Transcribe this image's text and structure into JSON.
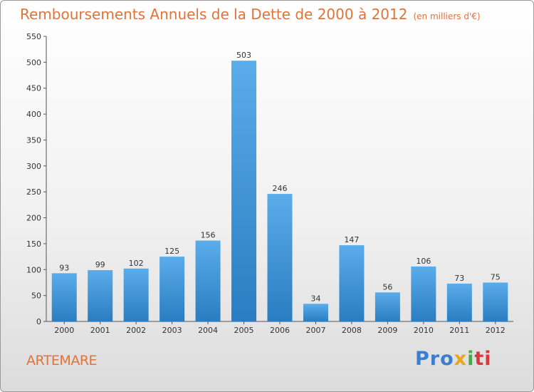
{
  "title": "Remboursements Annuels de la Dette de 2000 à 2012",
  "unit_note": "(en milliers d'€)",
  "town": "ARTEMARE",
  "logo": {
    "parts": [
      "Pro",
      "x",
      "i",
      "ti"
    ]
  },
  "colors": {
    "title": "#e0733a",
    "bar_top": "#5aacea",
    "bar_bottom": "#2a7dc0"
  },
  "chart_data": {
    "type": "bar",
    "title": "Remboursements Annuels de la Dette de 2000 à 2012",
    "subtitle": "(en milliers d'€)",
    "categories": [
      "2000",
      "2001",
      "2002",
      "2003",
      "2004",
      "2005",
      "2006",
      "2007",
      "2008",
      "2009",
      "2010",
      "2011",
      "2012"
    ],
    "values": [
      93,
      99,
      102,
      125,
      156,
      503,
      246,
      34,
      147,
      56,
      106,
      73,
      75
    ],
    "ylim": [
      0,
      550
    ],
    "yticks": [
      0,
      50,
      100,
      150,
      200,
      250,
      300,
      350,
      400,
      450,
      500,
      550
    ],
    "grid": false,
    "legend": "none"
  }
}
